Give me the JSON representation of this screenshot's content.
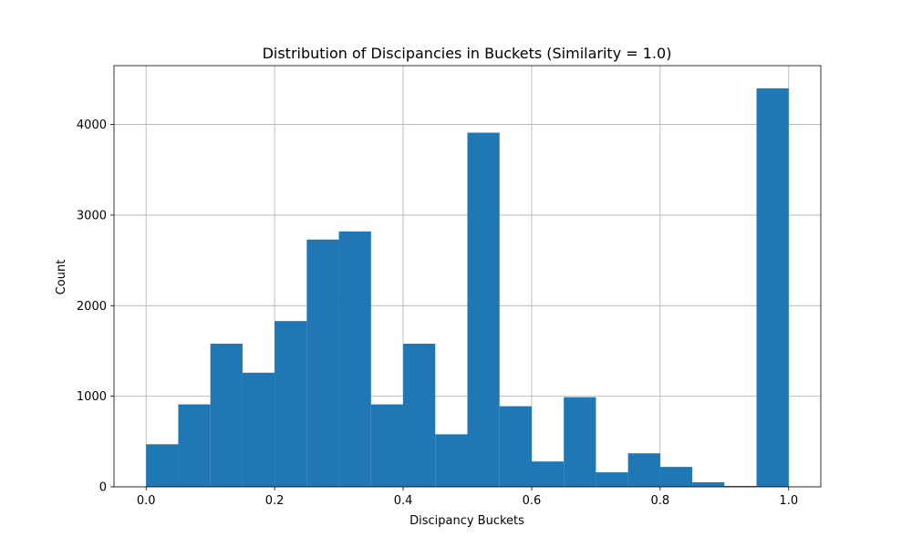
{
  "chart_data": {
    "type": "bar",
    "title": "Distribution of Discipancies in Buckets (Similarity = 1.0)",
    "xlabel": "Discipancy Buckets",
    "ylabel": "Count",
    "xlim": [
      -0.05,
      1.05
    ],
    "ylim": [
      0,
      4650
    ],
    "grid": true,
    "bar_color": "#1f77b4",
    "bin_width": 0.05,
    "bins": [
      {
        "x0": 0.0,
        "count": 470
      },
      {
        "x0": 0.05,
        "count": 910
      },
      {
        "x0": 0.1,
        "count": 1580
      },
      {
        "x0": 0.15,
        "count": 1260
      },
      {
        "x0": 0.2,
        "count": 1830
      },
      {
        "x0": 0.25,
        "count": 2730
      },
      {
        "x0": 0.3,
        "count": 2820
      },
      {
        "x0": 0.35,
        "count": 910
      },
      {
        "x0": 0.4,
        "count": 1580
      },
      {
        "x0": 0.45,
        "count": 580
      },
      {
        "x0": 0.5,
        "count": 3910
      },
      {
        "x0": 0.55,
        "count": 890
      },
      {
        "x0": 0.6,
        "count": 280
      },
      {
        "x0": 0.65,
        "count": 990
      },
      {
        "x0": 0.7,
        "count": 160
      },
      {
        "x0": 0.75,
        "count": 370
      },
      {
        "x0": 0.8,
        "count": 220
      },
      {
        "x0": 0.85,
        "count": 50
      },
      {
        "x0": 0.9,
        "count": 10
      },
      {
        "x0": 0.95,
        "count": 4400
      }
    ],
    "x_ticks": [
      {
        "value": 0.0,
        "label": "0.0"
      },
      {
        "value": 0.2,
        "label": "0.2"
      },
      {
        "value": 0.4,
        "label": "0.4"
      },
      {
        "value": 0.6,
        "label": "0.6"
      },
      {
        "value": 0.8,
        "label": "0.8"
      },
      {
        "value": 1.0,
        "label": "1.0"
      }
    ],
    "y_ticks": [
      {
        "value": 0,
        "label": "0"
      },
      {
        "value": 1000,
        "label": "1000"
      },
      {
        "value": 2000,
        "label": "2000"
      },
      {
        "value": 3000,
        "label": "3000"
      },
      {
        "value": 4000,
        "label": "4000"
      }
    ]
  }
}
